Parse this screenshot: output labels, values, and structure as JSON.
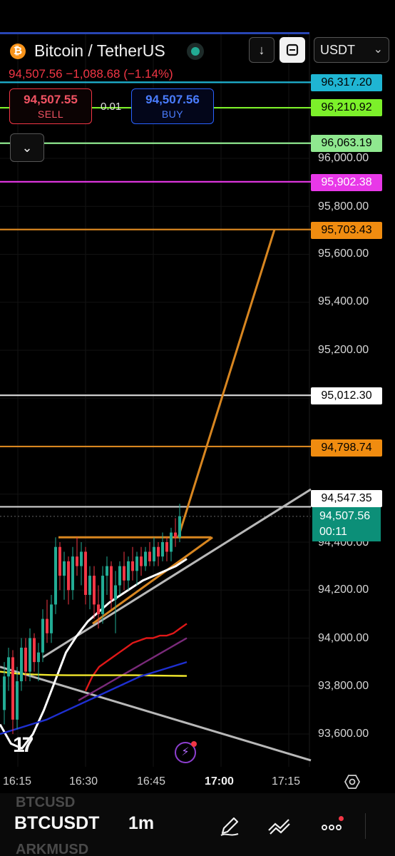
{
  "header": {
    "pair": "Bitcoin / TetherUS",
    "currency": "USDT",
    "last_price": "94,507.56",
    "change": "−1,088.68",
    "change_pct": "(−1.14%)",
    "down_icon": "arrow-down-icon",
    "chart_mode_icon": "square-frame-icon"
  },
  "trade": {
    "sell_price": "94,507.55",
    "sell_label": "SELL",
    "spread": "0.01",
    "buy_price": "94,507.56",
    "buy_label": "BUY"
  },
  "price_axis": {
    "labels": [
      "96,000.00",
      "95,800.00",
      "95,600.00",
      "95,400.00",
      "95,200.00",
      "94,400.00",
      "94,200.00",
      "94,000.00",
      "93,800.00",
      "93,600.00"
    ]
  },
  "price_tags": [
    {
      "text": "96,317.20",
      "bg": "#1fb5d3",
      "fg": "#000000"
    },
    {
      "text": "96,210.92",
      "bg": "#7cf02a",
      "fg": "#000000"
    },
    {
      "text": "96,063.19",
      "bg": "#8fe88f",
      "fg": "#000000"
    },
    {
      "text": "95,902.38",
      "bg": "#e838e8",
      "fg": "#ffffff"
    },
    {
      "text": "95,703.43",
      "bg": "#f08c10",
      "fg": "#000000"
    },
    {
      "text": "95,012.30",
      "bg": "#ffffff",
      "fg": "#000000"
    },
    {
      "text": "94,798.74",
      "bg": "#f08c10",
      "fg": "#000000"
    },
    {
      "text": "94,547.35",
      "bg": "#ffffff",
      "fg": "#000000"
    }
  ],
  "current_price": {
    "price": "94,507.56",
    "countdown": "00:11",
    "bg": "#0c8f78"
  },
  "time_axis": {
    "labels": [
      "16:15",
      "16:30",
      "16:45",
      "17:00",
      "17:15"
    ],
    "bold": "17:00"
  },
  "footer": {
    "symbol": "BTCUSDT",
    "interval": "1m",
    "ghost_above": "BTCUSD",
    "ghost_below": "ARKMUSD",
    "icons": [
      "pen-icon",
      "line-tool-icon",
      "more-icon"
    ]
  },
  "colors": {
    "up": "#22ab94",
    "down": "#f23645",
    "orange": "#d88620",
    "white": "#ffffff",
    "grey_line": "#b8b8b8"
  },
  "chart_data": {
    "type": "candlestick",
    "symbol": "BTCUSDT",
    "interval": "1m",
    "x_ticks": [
      "16:15",
      "16:30",
      "16:45",
      "17:00",
      "17:15"
    ],
    "ylim": [
      93500,
      96400
    ],
    "horizontal_levels": [
      {
        "price": 96317.2,
        "color": "#1fb5d3"
      },
      {
        "price": 96210.92,
        "color": "#7cf02a"
      },
      {
        "price": 96063.19,
        "color": "#8fe88f"
      },
      {
        "price": 95902.38,
        "color": "#e838e8"
      },
      {
        "price": 95703.43,
        "color": "#d88620"
      },
      {
        "price": 95012.3,
        "color": "#cfcfcf"
      },
      {
        "price": 94798.74,
        "color": "#d88620"
      },
      {
        "price": 94547.35,
        "color": "#cfcfcf"
      }
    ],
    "candles": [
      [
        93700,
        93900,
        93640,
        93840
      ],
      [
        93840,
        93960,
        93780,
        93920
      ],
      [
        93920,
        93950,
        93600,
        93660
      ],
      [
        93660,
        93880,
        93620,
        93820
      ],
      [
        93820,
        94000,
        93780,
        93960
      ],
      [
        93960,
        94000,
        93820,
        93860
      ],
      [
        93860,
        94040,
        93820,
        94000
      ],
      [
        94000,
        94020,
        93860,
        93900
      ],
      [
        93900,
        93980,
        93820,
        93940
      ],
      [
        93940,
        94120,
        93900,
        94080
      ],
      [
        94080,
        94160,
        93980,
        94020
      ],
      [
        94020,
        94180,
        93980,
        94140
      ],
      [
        94140,
        94420,
        94100,
        94380
      ],
      [
        94380,
        94400,
        94200,
        94260
      ],
      [
        94260,
        94360,
        94160,
        94320
      ],
      [
        94320,
        94340,
        94140,
        94200
      ],
      [
        94200,
        94380,
        94160,
        94340
      ],
      [
        94340,
        94420,
        94260,
        94300
      ],
      [
        94300,
        94400,
        94220,
        94360
      ],
      [
        94360,
        94380,
        94140,
        94180
      ],
      [
        94180,
        94300,
        94120,
        94260
      ],
      [
        94260,
        94300,
        94080,
        94140
      ],
      [
        94140,
        94220,
        94040,
        94100
      ],
      [
        94100,
        94300,
        94060,
        94260
      ],
      [
        94260,
        94340,
        94180,
        94300
      ],
      [
        94300,
        94320,
        94120,
        94160
      ],
      [
        94160,
        94280,
        94020,
        94220
      ],
      [
        94220,
        94320,
        94180,
        94300
      ],
      [
        94300,
        94360,
        94200,
        94240
      ],
      [
        94240,
        94340,
        94200,
        94320
      ],
      [
        94320,
        94380,
        94240,
        94280
      ],
      [
        94280,
        94360,
        94220,
        94340
      ],
      [
        94340,
        94380,
        94260,
        94300
      ],
      [
        94300,
        94380,
        94280,
        94360
      ],
      [
        94360,
        94400,
        94300,
        94320
      ],
      [
        94320,
        94420,
        94300,
        94380
      ],
      [
        94380,
        94400,
        94300,
        94340
      ],
      [
        94340,
        94440,
        94320,
        94400
      ],
      [
        94400,
        94420,
        94320,
        94360
      ],
      [
        94360,
        94460,
        94320,
        94440
      ],
      [
        94440,
        94500,
        94380,
        94420
      ],
      [
        94420,
        94560,
        94400,
        94508
      ]
    ],
    "moving_averages": [
      {
        "color": "#ffffff",
        "values": [
          93640,
          93560,
          93540,
          93600,
          93700,
          93820,
          93940,
          94010,
          94070,
          94110,
          94150,
          94180,
          94210,
          94240,
          94260,
          94280,
          94300,
          94330
        ]
      },
      {
        "color": "#e01818",
        "values": [
          93780,
          93840,
          93880,
          93900,
          93920,
          93940,
          93960,
          93980,
          93990,
          94000,
          94000,
          94010,
          94010,
          94020,
          94040,
          94060
        ]
      },
      {
        "color": "#7a2a7a",
        "values": [
          93740,
          93760,
          93780,
          93800,
          93820,
          93840,
          93860,
          93880,
          93900,
          93920,
          93940,
          93960,
          93980,
          94000
        ]
      },
      {
        "color": "#f2e82c",
        "values": [
          93860,
          93852,
          93848,
          93846,
          93845,
          93845,
          93845,
          93845,
          93845,
          93844,
          93843,
          93842
        ]
      },
      {
        "color": "#1e2fd0",
        "values": [
          93600,
          93620,
          93640,
          93660,
          93690,
          93720,
          93750,
          93780,
          93810,
          93840,
          93860,
          93880,
          93900
        ]
      }
    ]
  }
}
